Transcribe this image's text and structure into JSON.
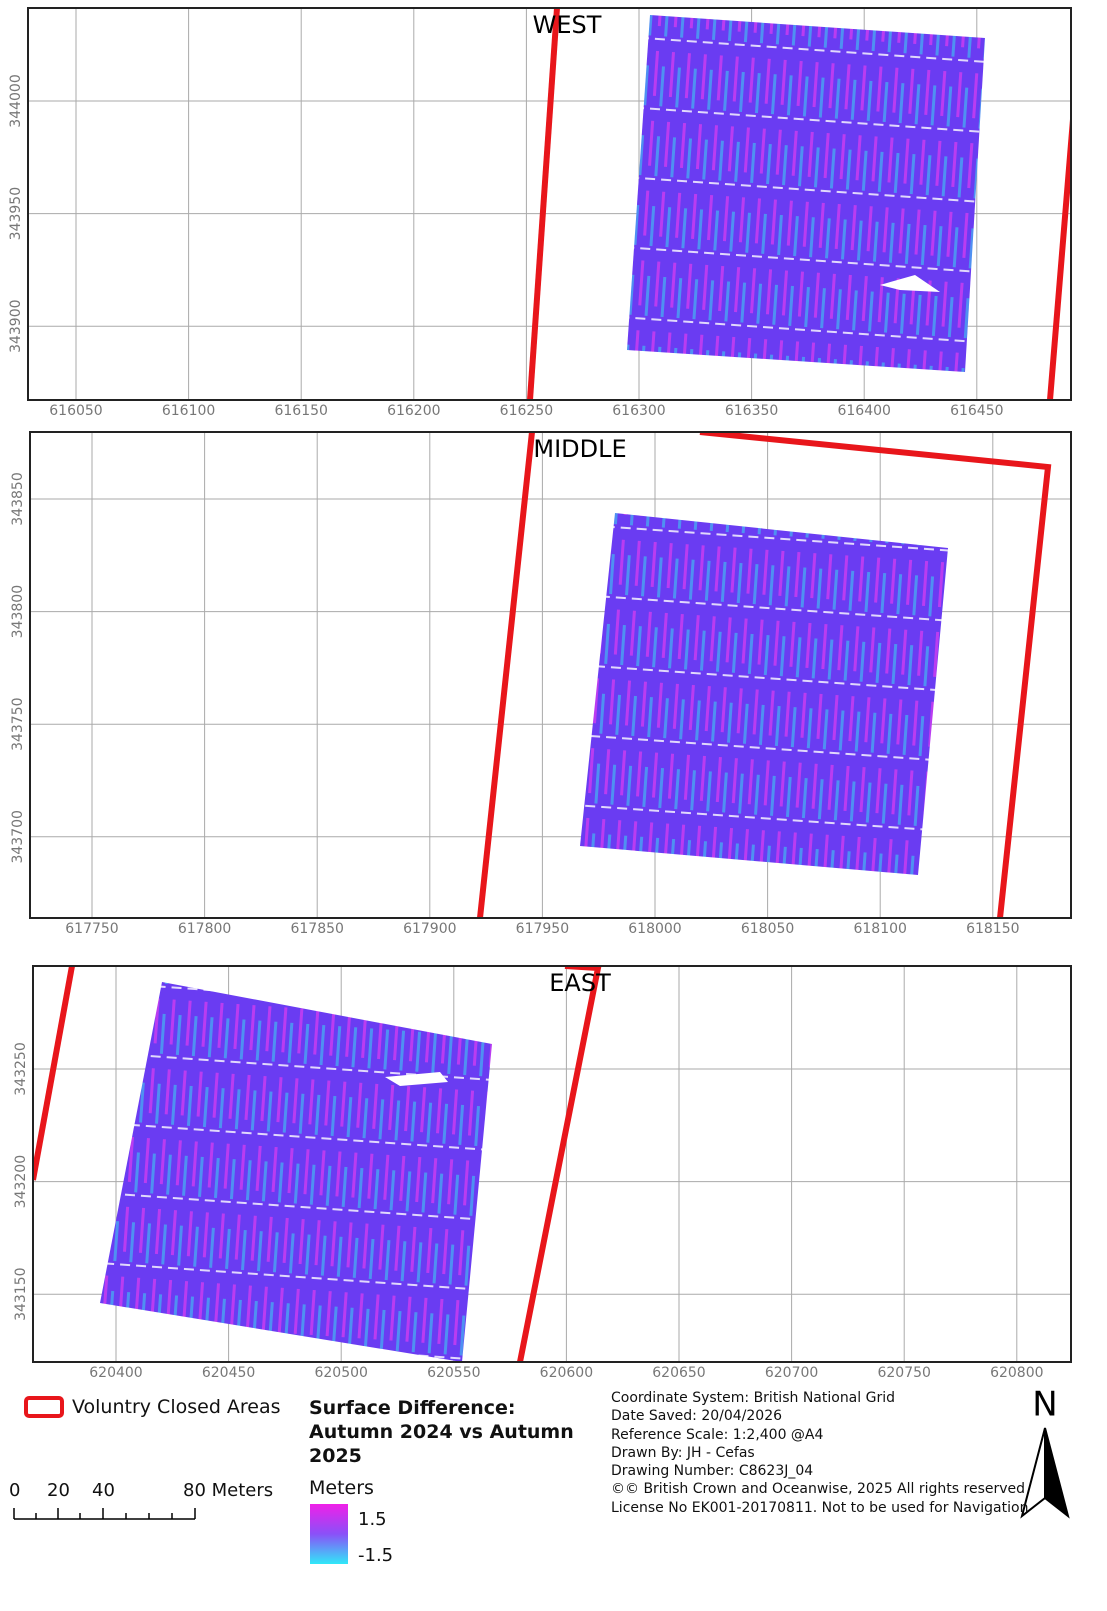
{
  "panels": [
    {
      "title": "WEST",
      "xticks": [
        616050,
        616100,
        616150,
        616200,
        616250,
        616300,
        616350,
        616400,
        616450
      ],
      "yticks": [
        344000,
        343950,
        343900
      ]
    },
    {
      "title": "MIDDLE",
      "xticks": [
        617750,
        617800,
        617850,
        617900,
        617950,
        618000,
        618050,
        618100,
        618150
      ],
      "yticks": [
        343850,
        343800,
        343750,
        343700
      ]
    },
    {
      "title": "EAST",
      "xticks": [
        620400,
        620450,
        620500,
        620550,
        620600,
        620650,
        620700,
        620750,
        620800
      ],
      "yticks": [
        343250,
        343200,
        343150
      ]
    }
  ],
  "legend": {
    "closed_areas": "Voluntry Closed Areas",
    "scale_bar": [
      "0",
      "20",
      "40",
      "80 Meters"
    ],
    "surface": {
      "title": "Surface Difference: Autumn 2024 vs Autumn 2025",
      "unit": "Meters",
      "max": "1.5",
      "min": "-1.5"
    }
  },
  "info": [
    "Coordinate System: British National Grid",
    "Date Saved: 20/04/2026",
    "Reference Scale: 1:2,400 @A4",
    "Drawn By: JH - Cefas",
    "Drawing Number: C8623J_04",
    "©© British Crown and Oceanwise, 2025 All rights reserved",
    "License No EK001-20170811. Not to be used for Navigation"
  ],
  "north": "N"
}
